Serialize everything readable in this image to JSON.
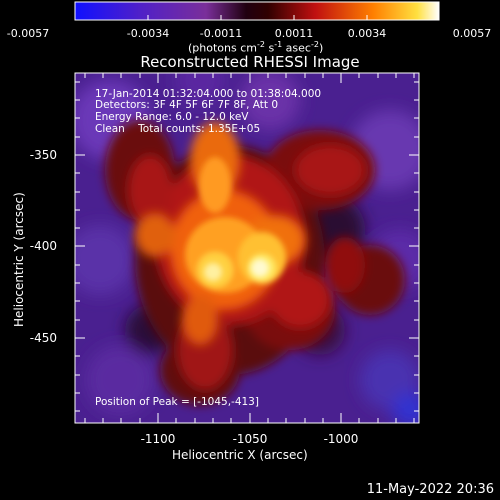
{
  "colorbar": {
    "ticks": [
      "-0.0057",
      "-0.0034",
      "-0.0011",
      "0.0011",
      "0.0034",
      "0.0057"
    ],
    "unit_prefix": "(photons cm",
    "unit_sup1": "-2",
    "unit_mid1": " s",
    "unit_sup2": "-1",
    "unit_mid2": " asec",
    "unit_sup3": "-2",
    "unit_suffix": ")",
    "range": [
      -0.0057,
      0.0057
    ]
  },
  "title": "Reconstructed RHESSI Image",
  "info": {
    "time": "17-Jan-2014 01:32:04.000 to 01:38:04.000",
    "detectors": "Detectors: 3F 4F 5F 6F 7F 8F, Att 0",
    "energy": "Energy Range: 6.0 - 12.0 keV",
    "clean": "Clean    Total counts: 1.35E+05"
  },
  "peak": "Position of Peak = [-1045,-413]",
  "axes": {
    "xlabel": "Heliocentric X (arcsec)",
    "ylabel": "Heliocentric Y (arcsec)",
    "xticks": [
      "-1100",
      "-1050",
      "-1000"
    ],
    "yticks": [
      "-350",
      "-400",
      "-450"
    ]
  },
  "footer": "11-May-2022 20:36"
}
